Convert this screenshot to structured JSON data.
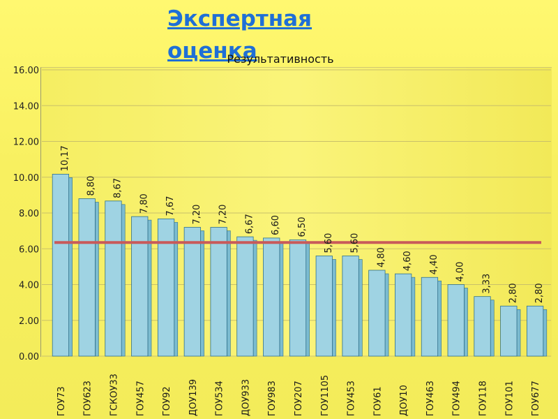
{
  "slide": {
    "heading": "Экспертная оценка"
  },
  "chart_data": {
    "type": "bar",
    "title": "Результативность",
    "categories": [
      "ГОУ73",
      "ГОУ623",
      "ГСКОУ33",
      "ГОУ457",
      "ГОУ92",
      "ДОУ139",
      "ГОУ534",
      "ДОУ933",
      "ГОУ983",
      "ГОУ207",
      "ГОУ1105",
      "ГОУ453",
      "ГОУ61",
      "ДОУ10",
      "ГОУ463",
      "ГОУ494",
      "ГОУ118",
      "ГОУ101",
      "ГОУ677"
    ],
    "values": [
      10.17,
      8.8,
      8.67,
      7.8,
      7.67,
      7.2,
      7.2,
      6.67,
      6.6,
      6.5,
      5.6,
      5.6,
      4.8,
      4.6,
      4.4,
      4.0,
      3.33,
      2.8,
      2.8
    ],
    "value_labels": [
      "10,17",
      "8,80",
      "8,67",
      "7,80",
      "7,67",
      "7,20",
      "7,20",
      "6,67",
      "6,60",
      "6,50",
      "5,60",
      "5,60",
      "4,80",
      "4,60",
      "4,40",
      "4,00",
      "3,33",
      "2,80",
      "2,80"
    ],
    "reference_line": 6.35,
    "ylim": [
      0,
      16
    ],
    "yticks": [
      "0.00",
      "2.00",
      "4.00",
      "6.00",
      "8.00",
      "10.00",
      "12.00",
      "14.00",
      "16.00"
    ],
    "ytick_values": [
      0,
      2,
      4,
      6,
      8,
      10,
      12,
      14,
      16
    ],
    "grid": true,
    "colors": {
      "bar_fill": "#9fd3e3",
      "bar_side": "#7cbcd0",
      "bar_stroke": "#2f6f8a",
      "reference_line": "#c85a5a",
      "tick_text": "#222222",
      "label_text": "#1a1a1a"
    }
  }
}
